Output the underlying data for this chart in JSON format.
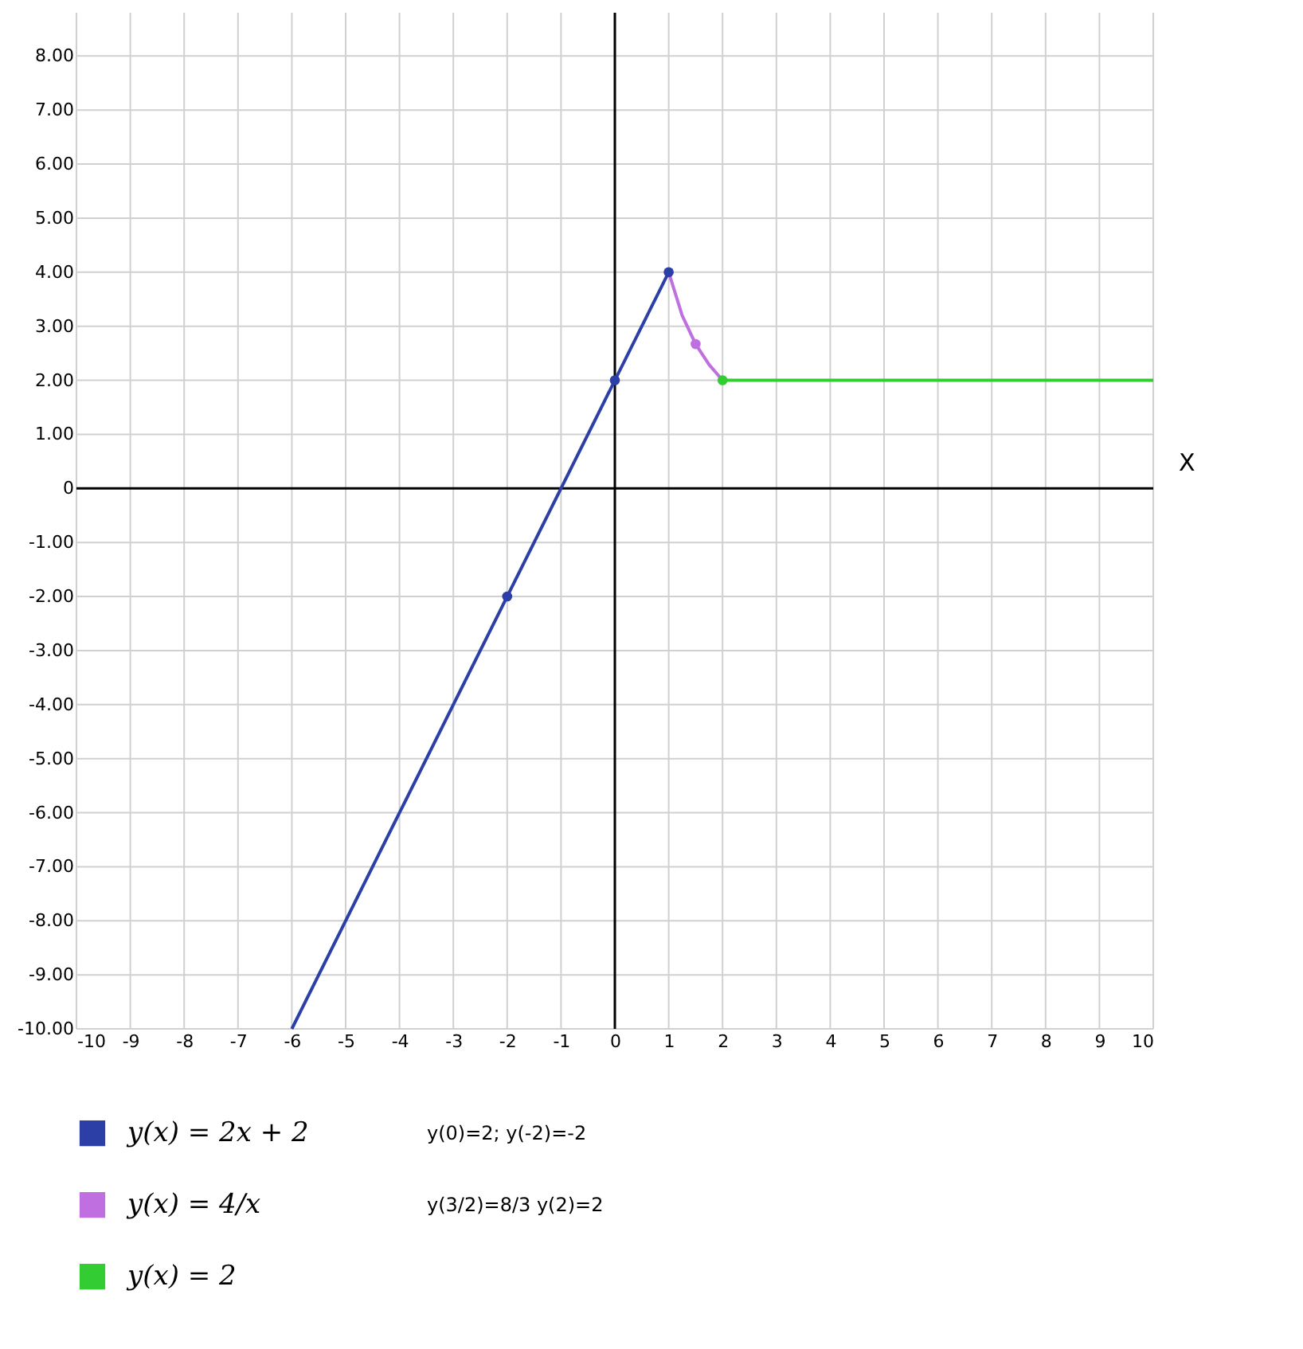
{
  "chart_data": {
    "type": "line",
    "xlabel": "X",
    "xlim": [
      -10,
      10
    ],
    "ylim": [
      -10,
      8.8
    ],
    "xticks": [
      -10,
      -9,
      -8,
      -7,
      -6,
      -5,
      -4,
      -3,
      -2,
      -1,
      0,
      1,
      2,
      3,
      4,
      5,
      6,
      7,
      8,
      9,
      10
    ],
    "yticks": [
      {
        "value": -10,
        "label": "-10.00"
      },
      {
        "value": -9,
        "label": "-9.00"
      },
      {
        "value": -8,
        "label": "-8.00"
      },
      {
        "value": -7,
        "label": "-7.00"
      },
      {
        "value": -6,
        "label": "-6.00"
      },
      {
        "value": -5,
        "label": "-5.00"
      },
      {
        "value": -4,
        "label": "-4.00"
      },
      {
        "value": -3,
        "label": "-3.00"
      },
      {
        "value": -2,
        "label": "-2.00"
      },
      {
        "value": -1,
        "label": "-1.00"
      },
      0,
      {
        "value": 1,
        "label": "1.00"
      },
      {
        "value": 2,
        "label": "2.00"
      },
      {
        "value": 3,
        "label": "3.00"
      },
      {
        "value": 4,
        "label": "4.00"
      },
      {
        "value": 5,
        "label": "5.00"
      },
      {
        "value": 6,
        "label": "6.00"
      },
      {
        "value": 7,
        "label": "7.00"
      },
      {
        "value": 8,
        "label": "8.00"
      }
    ],
    "grid": true,
    "legend": "bottom",
    "series": [
      {
        "name": "y(x) = 2x + 2",
        "color": "#2b3fa6",
        "x": [
          -6,
          1
        ],
        "values": [
          -10,
          4
        ]
      },
      {
        "name": "y(x) = 4/x",
        "color": "#bf6fe0",
        "x": [
          1,
          1.25,
          1.5,
          1.75,
          2
        ],
        "values": [
          4,
          3.2,
          2.67,
          2.29,
          2
        ]
      },
      {
        "name": "y(x) = 2",
        "color": "#33cc33",
        "x": [
          2,
          10
        ],
        "values": [
          2,
          2
        ]
      },
      {
        "type": "scatter",
        "marker": "circle",
        "x": [
          -2,
          0,
          1,
          1.5,
          2
        ],
        "values": [
          -2,
          2,
          4,
          2.67,
          2
        ],
        "colors": [
          "#2b3fa6",
          "#2b3fa6",
          "#2b3fa6",
          "#bf6fe0",
          "#33cc33"
        ]
      }
    ],
    "annotations": [
      "y(0)=2; y(-2)=-2",
      "y(3/2)=8/3 y(2)=2"
    ]
  }
}
